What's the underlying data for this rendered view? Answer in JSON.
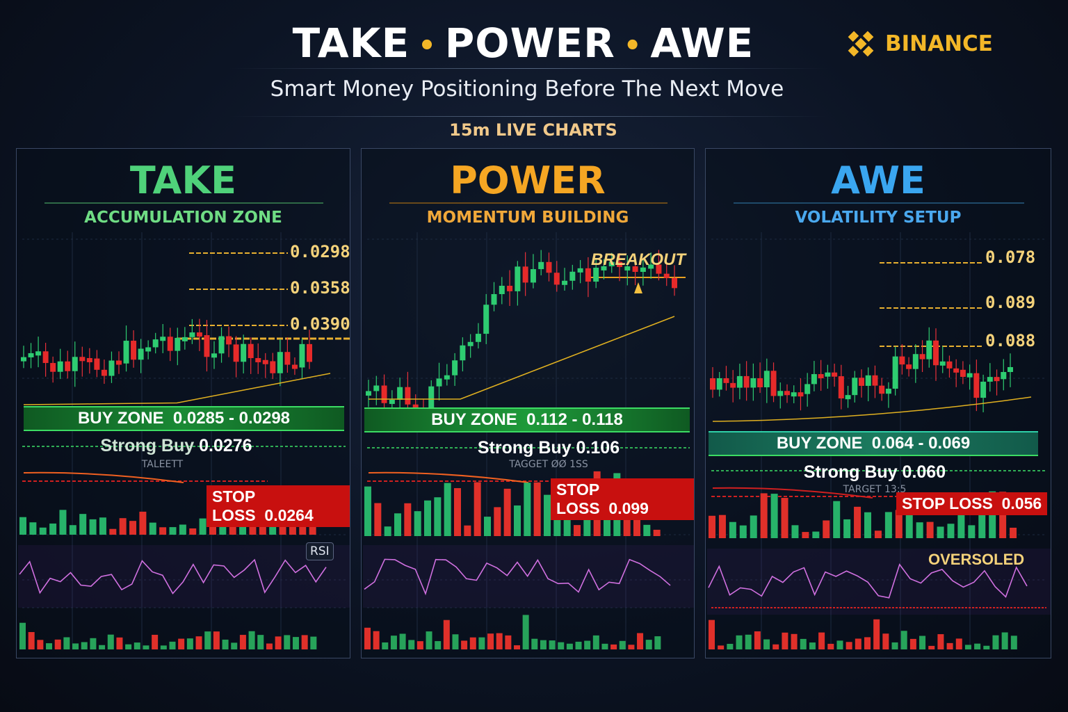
{
  "header": {
    "title_parts": [
      "TAKE",
      "POWER",
      "AWE"
    ],
    "separator": "•",
    "brand": "BINANCE",
    "brand_color": "#f3b728",
    "subtitle": "Smart Money Positioning Before The Next Move",
    "timeframe": "15m LIVE CHARTS"
  },
  "panels": [
    {
      "name": "TAKE",
      "color": "#4fd27a",
      "subtitle": "ACCUMULATION ZONE",
      "levels": [
        "0.0298",
        "0.0358",
        "0.0390"
      ],
      "buy_zone_label": "BUY ZONE",
      "buy_zone": "0.0285 - 0.0298",
      "strong_buy_label": "Strong Buy",
      "strong_buy": "0.0276",
      "target": "TALEETT",
      "stop_loss_label": "STOP LOSS",
      "stop_loss": "0.0264",
      "indicator_label": "RSI"
    },
    {
      "name": "POWER",
      "color": "#f5a623",
      "subtitle": "MOMENTUM BUILDING",
      "levels": [],
      "badge": "BREAKOUT",
      "buy_zone_label": "BUY ZONE",
      "buy_zone": "0.112 - 0.118",
      "strong_buy_label": "Strong Buy",
      "strong_buy": "0.106",
      "target": "TAGGET ØØ 1SS",
      "stop_loss_label": "STOP LOSS",
      "stop_loss": "0.099"
    },
    {
      "name": "AWE",
      "color": "#3aa6f0",
      "subtitle": "VOLATILITY SETUP",
      "levels": [
        "0.078",
        "0.089",
        "0.088"
      ],
      "buy_zone_label": "BUY ZONE",
      "buy_zone": "0.064 - 0.069",
      "strong_buy_label": "Strong Buy",
      "strong_buy": "0.060",
      "target": "TARGET 13:5",
      "stop_loss_label": "STOP LOSS",
      "stop_loss": "0.056",
      "indicator_label": "OVERSOLED"
    }
  ]
}
